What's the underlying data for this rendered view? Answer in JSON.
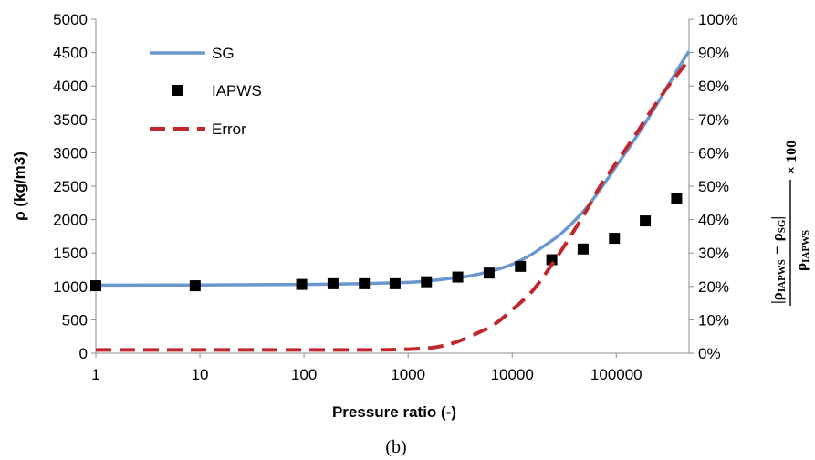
{
  "chart_data": {
    "type": "line",
    "xlabel": "Pressure ratio (-)",
    "ylabel": "ρ (kg/m3)",
    "y2label": {
      "numerator": "|ρIAPWS − ρSG|",
      "denominator": "ρIAPWS",
      "suffix": "× 100",
      "num_left": "ρ",
      "num_left_sub": "IAPWS",
      "minus": "−",
      "num_right": "ρ",
      "num_right_sub": "SG",
      "den": "ρ",
      "den_sub": "IAPWS",
      "times": "× 100"
    },
    "caption": "(b)",
    "x_scale": "log",
    "xlim": [
      1,
      500000
    ],
    "ylim": [
      0,
      5000
    ],
    "y2lim": [
      0,
      100
    ],
    "x_ticks": [
      "1",
      "10",
      "100",
      "1000",
      "10000",
      "100000"
    ],
    "y_ticks": [
      "0",
      "500",
      "1000",
      "1500",
      "2000",
      "2500",
      "3000",
      "3500",
      "4000",
      "4500",
      "5000"
    ],
    "y2_ticks": [
      "0%",
      "10%",
      "20%",
      "30%",
      "40%",
      "50%",
      "60%",
      "70%",
      "80%",
      "90%",
      "100%"
    ],
    "grid": false,
    "legend_position": "top-left",
    "series": [
      {
        "name": "SG",
        "style": "line",
        "color": "#6a97cd",
        "axis": "left",
        "x": [
          1,
          10,
          100,
          300,
          1000,
          2000,
          4000,
          7000,
          10000,
          15000,
          20000,
          30000,
          50000,
          70000,
          100000,
          150000,
          200000,
          300000,
          400000,
          500000
        ],
        "y": [
          1020,
          1022,
          1030,
          1040,
          1060,
          1100,
          1160,
          1250,
          1330,
          1470,
          1600,
          1800,
          2150,
          2450,
          2800,
          3200,
          3500,
          3950,
          4280,
          4520
        ]
      },
      {
        "name": "IAPWS",
        "style": "marker",
        "color": "#000000",
        "axis": "left",
        "x": [
          1,
          9,
          95,
          190,
          380,
          750,
          1500,
          3000,
          6000,
          12000,
          24000,
          48000,
          96000,
          190000,
          380000
        ],
        "y": [
          1010,
          1010,
          1030,
          1040,
          1040,
          1040,
          1070,
          1140,
          1200,
          1300,
          1400,
          1560,
          1720,
          1980,
          2320
        ]
      },
      {
        "name": "Error",
        "style": "dashed",
        "color": "#c0272d",
        "axis": "right",
        "x": [
          1,
          10,
          100,
          500,
          1000,
          1500,
          2000,
          3000,
          5000,
          7000,
          10000,
          15000,
          20000,
          30000,
          50000,
          70000,
          100000,
          150000,
          200000,
          300000,
          400000,
          500000
        ],
        "y": [
          1.0,
          1.0,
          1.0,
          1.0,
          1.2,
          1.5,
          2.0,
          3.5,
          6.5,
          9.0,
          13.0,
          18.0,
          23.0,
          31.0,
          42.0,
          50.0,
          57.0,
          65.0,
          71.0,
          79.0,
          84.0,
          88.0
        ]
      }
    ]
  }
}
